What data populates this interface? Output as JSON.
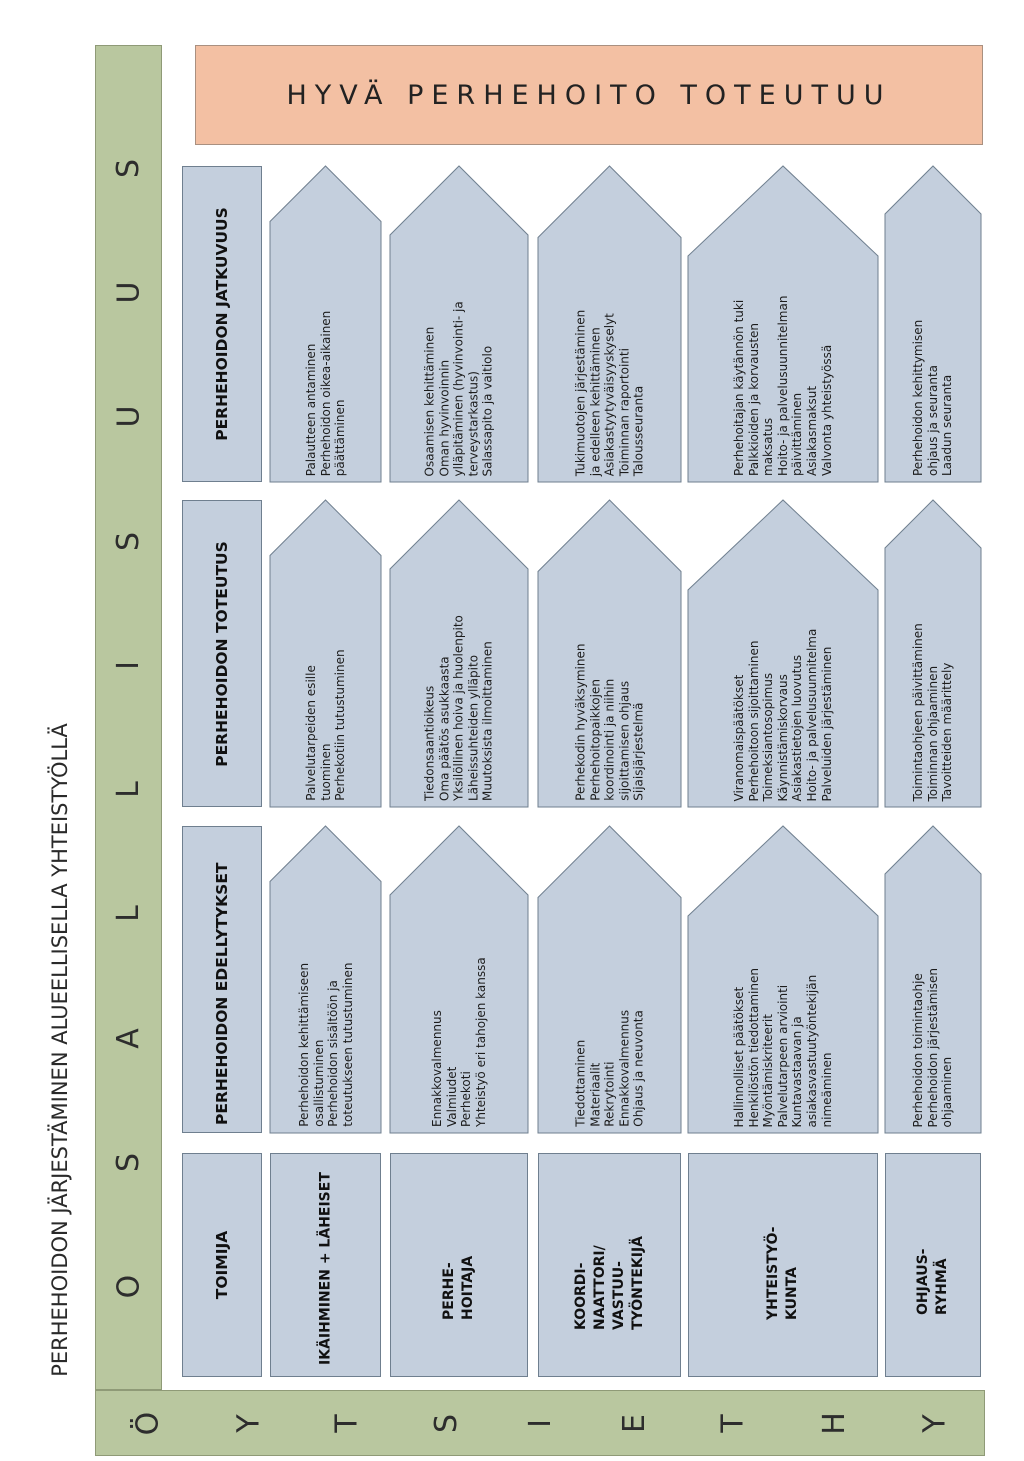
{
  "page_title": "PERHEHOIDON JÄRJESTÄMINEN ALUEELLISELLA YHTEISTYÖLLÄ",
  "left_bar_letters": [
    "Y",
    "H",
    "T",
    "E",
    "I",
    "S",
    "T",
    "Y",
    "Ö"
  ],
  "top_bar_letters": [
    "O",
    "S",
    "A",
    "L",
    "L",
    "I",
    "S",
    "U",
    "U",
    "S"
  ],
  "banner": "HYVÄ PERHEHOITO TOTEUTUU",
  "column_headers": {
    "actor": "TOIMIJA",
    "prerequisites": "PERHEHOIDON EDELLYTYKSET",
    "implementation": "PERHEHOIDON TOTEUTUS",
    "continuity": "PERHEHOIDON JATKUVUUS"
  },
  "rows": [
    {
      "actor": "IKÄIHMINEN + LÄHEISET",
      "prerequisites": [
        "Perhehoidon kehittämiseen",
        "osallistuminen",
        "Perhehoidon sisältöön ja",
        "toteutukseen tutustuminen"
      ],
      "implementation": [
        "Palvelutarpeiden esille",
        "tuominen",
        "Perhekotiin tutustuminen"
      ],
      "continuity": [
        "Palautteen antaminen",
        "Perhehoidon oikea-aikainen",
        "päättäminen"
      ]
    },
    {
      "actor": "PERHE- HOITAJA",
      "prerequisites": [
        "Ennakkovalmennus",
        "Valmiudet",
        "Perhekoti",
        "Yhteistyö eri tahojen kanssa"
      ],
      "implementation": [
        "Tiedonsaantioikeus",
        "Oma päätös asukkaasta",
        "Yksilöllinen hoiva ja huolenpito",
        "Läheissuhteiden ylläpito",
        "Muutoksista ilmoittaminen"
      ],
      "continuity": [
        "Osaamisen kehittäminen",
        "Oman hyvinvoinnin",
        "ylläpitäminen (hyvinvointi- ja",
        "terveystarkastus)",
        "Salassapito ja vaitiolo"
      ]
    },
    {
      "actor": "KOORDI- NAATTORI/ VASTUU- TYÖNTEKIJÄ",
      "prerequisites": [
        "Tiedottaminen",
        "Materiaalit",
        "Rekrytointi",
        "Ennakkovalmennus",
        "Ohjaus ja neuvonta"
      ],
      "implementation": [
        "Perhekodin hyväksyminen",
        "Perhehoitopaikkojen",
        "koordinointi ja niihin",
        "sijoittamisen ohjaus",
        "Sijaisjärjestelmä"
      ],
      "continuity": [
        "Tukimuotojen järjestäminen",
        "ja edelleen kehittäminen",
        "Asiakastyytyväisyyskyselyt",
        "Toiminnan raportointi",
        "Talousseuranta"
      ]
    },
    {
      "actor": "YHTEISTYÖ- KUNTA",
      "prerequisites": [
        "Hallinnolliset päätökset",
        "Henkilöstön tiedottaminen",
        "Myöntämiskriteerit",
        "Palvelutarpeen arviointi",
        "Kuntavastaavan ja",
        "asiakasvastuutyöntekijän",
        "nimeäminen"
      ],
      "implementation": [
        "Viranomaispäätökset",
        "Perhehoitoon sijoittaminen",
        "Toimeksiantosopimus",
        "Käynnistämiskorvaus",
        "Asiakastietojen luovutus",
        "Hoito- ja palvelusuunnitelma",
        "Palveluiden järjestäminen"
      ],
      "continuity": [
        "Perhehoitajan käytännön tuki",
        "Palkkioiden ja korvausten",
        "maksatus",
        "Hoito- ja palvelusuunnitelman",
        "päivittäminen",
        "Asiakasmaksut",
        "Valvonta yhteistyössä"
      ]
    },
    {
      "actor": "OHJAUS- RYHMÄ",
      "prerequisites": [
        "Perhehoidon toimintaohje",
        "Perhehoidon järjestämisen",
        "ohjaaminen"
      ],
      "implementation": [
        "Toimintaohjeen päivittäminen",
        "Toiminnan ohjaaminen",
        "Tavoitteiden määrittely"
      ],
      "continuity": [
        "Perhehoidon kehittymisen",
        "ohjaus ja seuranta",
        "Laadun seuranta"
      ]
    }
  ],
  "colors": {
    "green": "#b9c79f",
    "blue_box": "#c4cfdd",
    "banner": "#f3c0a3"
  }
}
